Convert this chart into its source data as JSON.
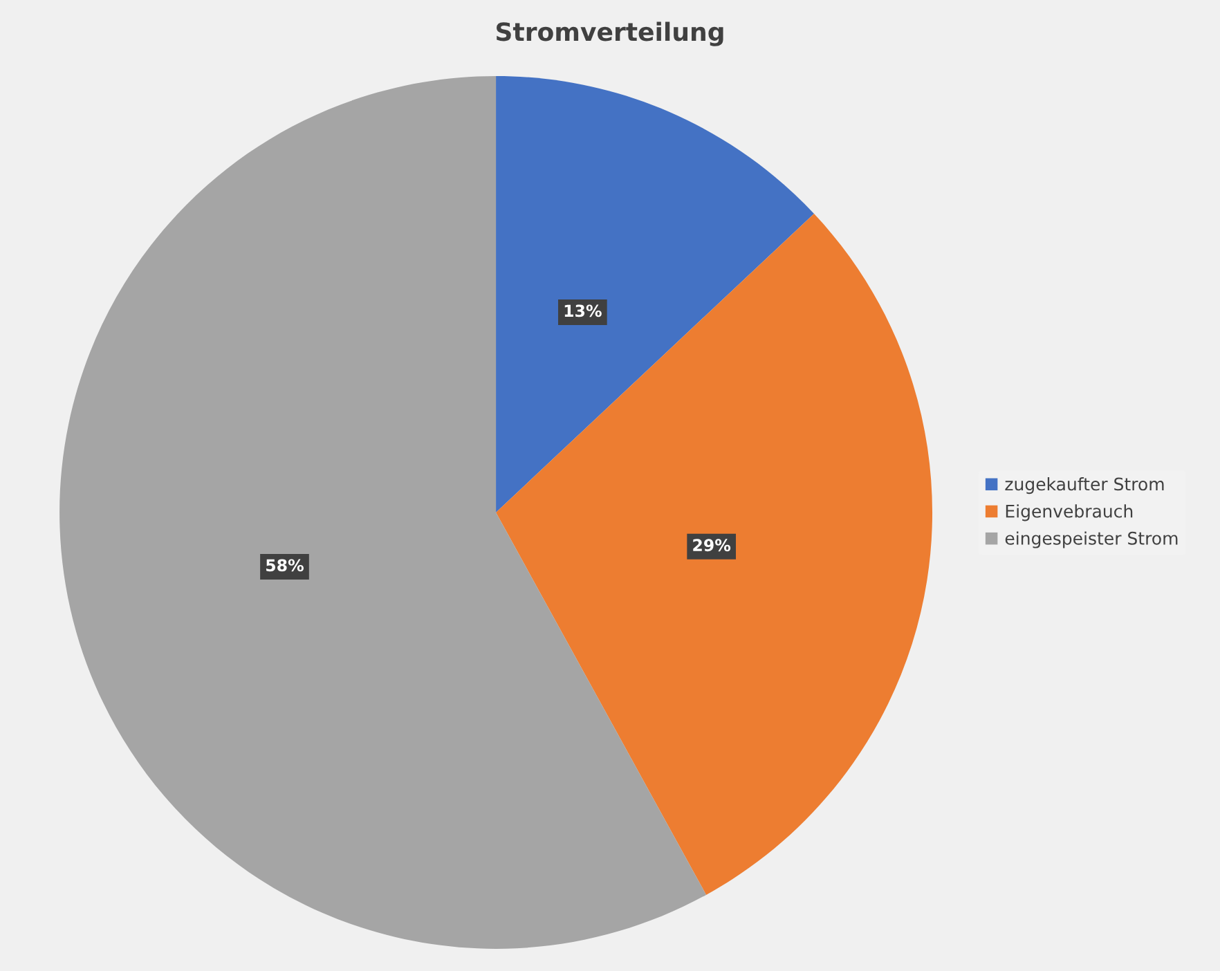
{
  "chart_data": {
    "type": "pie",
    "title": "Stromverteilung",
    "categories": [
      "zugekaufter Strom",
      "Eigenvebrauch",
      "eingespeister Strom"
    ],
    "values": [
      13,
      29,
      58
    ],
    "colors": [
      "#4472c4",
      "#ed7d31",
      "#a5a5a5"
    ],
    "value_labels": [
      "13%",
      "29%",
      "58%"
    ],
    "legend": "right"
  }
}
